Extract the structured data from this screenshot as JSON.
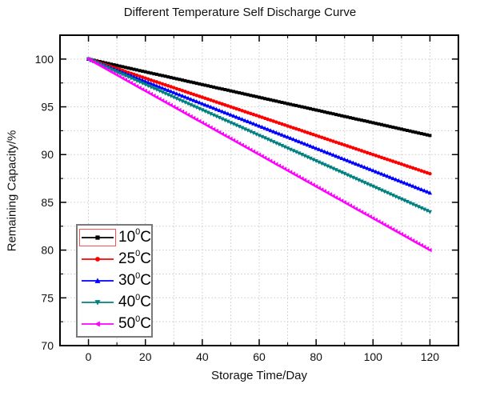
{
  "window": {
    "background": "#ffffff"
  },
  "chart_data": {
    "type": "line",
    "title": "Different Temperature Self Discharge Curve",
    "xlabel": "Storage Time/Day",
    "ylabel": "Remaining Capacity/%",
    "xlim": [
      -10,
      130
    ],
    "ylim": [
      70,
      102.5
    ],
    "x_major_ticks": [
      0,
      20,
      40,
      60,
      80,
      100,
      120
    ],
    "x_minor_step": 10,
    "y_major_ticks": [
      70,
      75,
      80,
      85,
      90,
      95,
      100
    ],
    "y_minor_step": 2.5,
    "grid": {
      "shown": true,
      "style": "dashed",
      "color": "#c9c9c9",
      "at": "major-and-minor-ticks"
    },
    "axis_box_color": "#000000",
    "marker_step_days": 1,
    "series": [
      {
        "temperature_c": 10,
        "label_base": "10",
        "label_sup": "0",
        "label_unit": "C",
        "color": "#000000",
        "marker": "square",
        "x": [
          0,
          120
        ],
        "y": [
          100,
          92
        ]
      },
      {
        "temperature_c": 25,
        "label_base": "25",
        "label_sup": "0",
        "label_unit": "C",
        "color": "#ff0000",
        "marker": "circle",
        "x": [
          0,
          120
        ],
        "y": [
          100,
          88
        ]
      },
      {
        "temperature_c": 30,
        "label_base": "30",
        "label_sup": "0",
        "label_unit": "C",
        "color": "#0000ff",
        "marker": "triangle-up",
        "x": [
          0,
          120
        ],
        "y": [
          100,
          86
        ]
      },
      {
        "temperature_c": 40,
        "label_base": "40",
        "label_sup": "0",
        "label_unit": "C",
        "color": "#008080",
        "marker": "triangle-down",
        "x": [
          0,
          120
        ],
        "y": [
          100,
          84
        ]
      },
      {
        "temperature_c": 50,
        "label_base": "50",
        "label_sup": "0",
        "label_unit": "C",
        "color": "#ff00ff",
        "marker": "triangle-left",
        "x": [
          0,
          120
        ],
        "y": [
          100,
          80
        ]
      }
    ],
    "legend": {
      "position": "bottom-left-inside-plot",
      "border_color": "#7a7a7a",
      "selected_index": 0,
      "selection_box_color": "#ff4f4f"
    }
  }
}
